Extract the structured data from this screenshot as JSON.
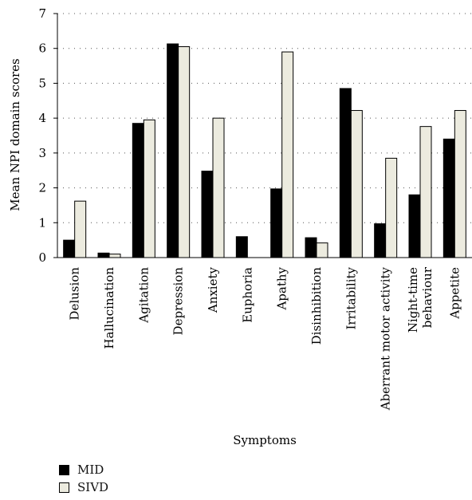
{
  "chart_data": {
    "type": "bar",
    "xlabel": "Symptoms",
    "ylabel": "Mean NPI domain scores",
    "ylim": [
      0,
      7
    ],
    "yticks": [
      0,
      1,
      2,
      3,
      4,
      5,
      6,
      7
    ],
    "grid": "horizontal dotted",
    "categories": [
      "Delusion",
      "Hallucination",
      "Agitation",
      "Depression",
      "Anxiety",
      "Euphoria",
      "Apathy",
      "Disinhibition",
      "Irritability",
      "Aberrant motor activity",
      "Night-time behaviour",
      "Appetite"
    ],
    "series": [
      {
        "name": "MID",
        "color": "#000000",
        "values": [
          0.5,
          0.13,
          3.85,
          6.13,
          2.48,
          0.6,
          1.97,
          0.57,
          4.85,
          0.97,
          1.8,
          3.4
        ]
      },
      {
        "name": "SIVD",
        "color": "#ecebdf",
        "values": [
          1.62,
          0.1,
          3.95,
          6.05,
          4.0,
          0.0,
          5.9,
          0.42,
          4.22,
          2.85,
          3.76,
          4.22
        ]
      }
    ],
    "legend_position": "bottom-left"
  }
}
